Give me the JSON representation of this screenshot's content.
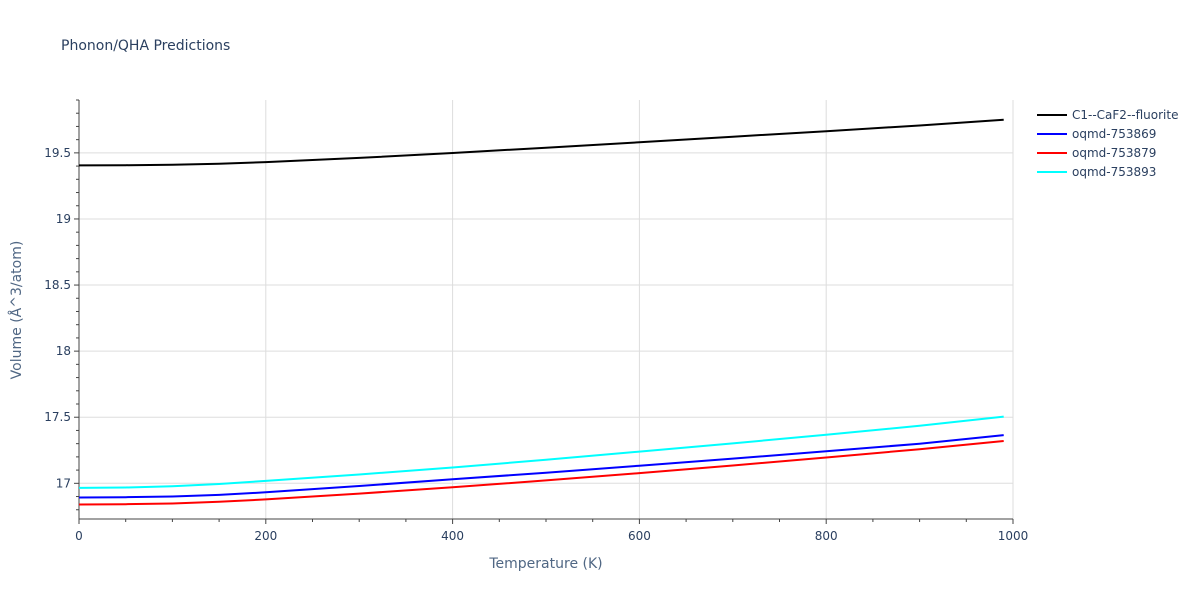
{
  "chart_data": {
    "type": "line",
    "title": "Phonon/QHA Predictions",
    "xlabel": "Temperature (K)",
    "ylabel": "Volume (Å^3/atom)",
    "xlim": [
      0,
      1000
    ],
    "ylim": [
      16.73,
      19.9
    ],
    "xticks": [
      0,
      200,
      400,
      600,
      800,
      1000
    ],
    "yticks": [
      17,
      17.5,
      18,
      18.5,
      19,
      19.5
    ],
    "grid": true,
    "legend_position": "top-right",
    "series": [
      {
        "name": "C1--CaF2--fluorite",
        "color": "#000000",
        "x": [
          0,
          50,
          100,
          150,
          200,
          300,
          400,
          500,
          600,
          700,
          800,
          900,
          990
        ],
        "y": [
          19.405,
          19.407,
          19.41,
          19.418,
          19.43,
          19.462,
          19.499,
          19.539,
          19.58,
          19.622,
          19.664,
          19.707,
          19.75
        ]
      },
      {
        "name": "oqmd-753869",
        "color": "#0000ff",
        "x": [
          0,
          50,
          100,
          150,
          200,
          300,
          400,
          500,
          600,
          700,
          800,
          900,
          990
        ],
        "y": [
          16.893,
          16.895,
          16.9,
          16.912,
          16.932,
          16.98,
          17.03,
          17.08,
          17.133,
          17.187,
          17.242,
          17.3,
          17.365
        ]
      },
      {
        "name": "oqmd-753879",
        "color": "#ff0000",
        "x": [
          0,
          50,
          100,
          150,
          200,
          300,
          400,
          500,
          600,
          700,
          800,
          900,
          990
        ],
        "y": [
          16.84,
          16.842,
          16.847,
          16.86,
          16.878,
          16.922,
          16.97,
          17.022,
          17.077,
          17.135,
          17.195,
          17.258,
          17.32
        ]
      },
      {
        "name": "oqmd-753893",
        "color": "#00ffff",
        "x": [
          0,
          50,
          100,
          150,
          200,
          300,
          400,
          500,
          600,
          700,
          800,
          900,
          990
        ],
        "y": [
          16.965,
          16.968,
          16.978,
          16.995,
          17.018,
          17.067,
          17.12,
          17.178,
          17.24,
          17.302,
          17.368,
          17.435,
          17.505
        ]
      }
    ]
  }
}
